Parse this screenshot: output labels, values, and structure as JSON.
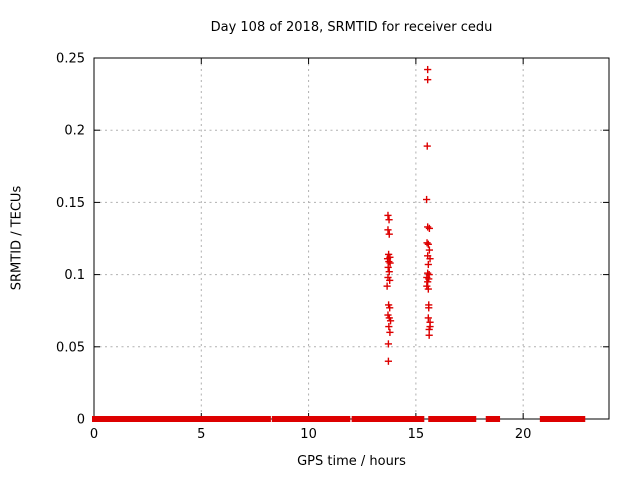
{
  "figure": {
    "background": "#ffffff",
    "text_color": "#000000",
    "grid_color": "#b0b0b0",
    "border_color": "#000000"
  },
  "chart_data": {
    "type": "scatter",
    "title": "Day 108 of 2018, SRMTID for receiver cedu",
    "xlabel": "GPS time / hours",
    "ylabel": "SRMTID / TECUs",
    "xlim": [
      0,
      24
    ],
    "ylim": [
      0,
      0.25
    ],
    "xtick_values": [
      0,
      5,
      10,
      15,
      20
    ],
    "xtick_labels": [
      "0",
      "5",
      "10",
      "15",
      "20"
    ],
    "ytick_values": [
      0,
      0.05,
      0.1,
      0.15,
      0.2,
      0.25
    ],
    "ytick_labels": [
      "0",
      "0.05",
      "0.1",
      "0.15",
      "0.2",
      "0.25"
    ],
    "grid": true,
    "legend": "none",
    "marker": "plus",
    "marker_color": "#dd0000",
    "series": [
      {
        "name": "zero-baseline coverage",
        "render": "segments",
        "y": 0,
        "segments_hours": [
          [
            0.0,
            8.15
          ],
          [
            8.38,
            8.48
          ],
          [
            8.55,
            8.65
          ],
          [
            8.72,
            11.85
          ],
          [
            12.1,
            13.8
          ],
          [
            13.97,
            15.3
          ],
          [
            15.67,
            17.72
          ],
          [
            18.35,
            18.5
          ],
          [
            18.67,
            18.83
          ],
          [
            20.87,
            22.8
          ]
        ]
      },
      {
        "name": "elevated SRMTID points",
        "render": "points",
        "points": [
          [
            13.7,
            0.141
          ],
          [
            13.75,
            0.138
          ],
          [
            13.7,
            0.131
          ],
          [
            13.76,
            0.128
          ],
          [
            13.73,
            0.114
          ],
          [
            13.79,
            0.112
          ],
          [
            13.68,
            0.111
          ],
          [
            13.74,
            0.109
          ],
          [
            13.8,
            0.108
          ],
          [
            13.71,
            0.105
          ],
          [
            13.76,
            0.102
          ],
          [
            13.7,
            0.098
          ],
          [
            13.78,
            0.096
          ],
          [
            13.66,
            0.092
          ],
          [
            13.73,
            0.079
          ],
          [
            13.78,
            0.077
          ],
          [
            13.7,
            0.072
          ],
          [
            13.76,
            0.07
          ],
          [
            13.82,
            0.068
          ],
          [
            13.74,
            0.064
          ],
          [
            13.79,
            0.06
          ],
          [
            13.72,
            0.052
          ],
          [
            13.72,
            0.04
          ],
          [
            15.55,
            0.242
          ],
          [
            15.55,
            0.235
          ],
          [
            15.53,
            0.189
          ],
          [
            15.5,
            0.152
          ],
          [
            15.55,
            0.133
          ],
          [
            15.63,
            0.132
          ],
          [
            15.52,
            0.122
          ],
          [
            15.58,
            0.121
          ],
          [
            15.63,
            0.117
          ],
          [
            15.55,
            0.113
          ],
          [
            15.66,
            0.111
          ],
          [
            15.58,
            0.107
          ],
          [
            15.55,
            0.101
          ],
          [
            15.62,
            0.1
          ],
          [
            15.51,
            0.098
          ],
          [
            15.6,
            0.097
          ],
          [
            15.55,
            0.095
          ],
          [
            15.51,
            0.092
          ],
          [
            15.58,
            0.09
          ],
          [
            15.6,
            0.079
          ],
          [
            15.6,
            0.077
          ],
          [
            15.58,
            0.07
          ],
          [
            15.66,
            0.067
          ],
          [
            15.66,
            0.064
          ],
          [
            15.62,
            0.062
          ],
          [
            15.62,
            0.058
          ]
        ]
      }
    ]
  }
}
